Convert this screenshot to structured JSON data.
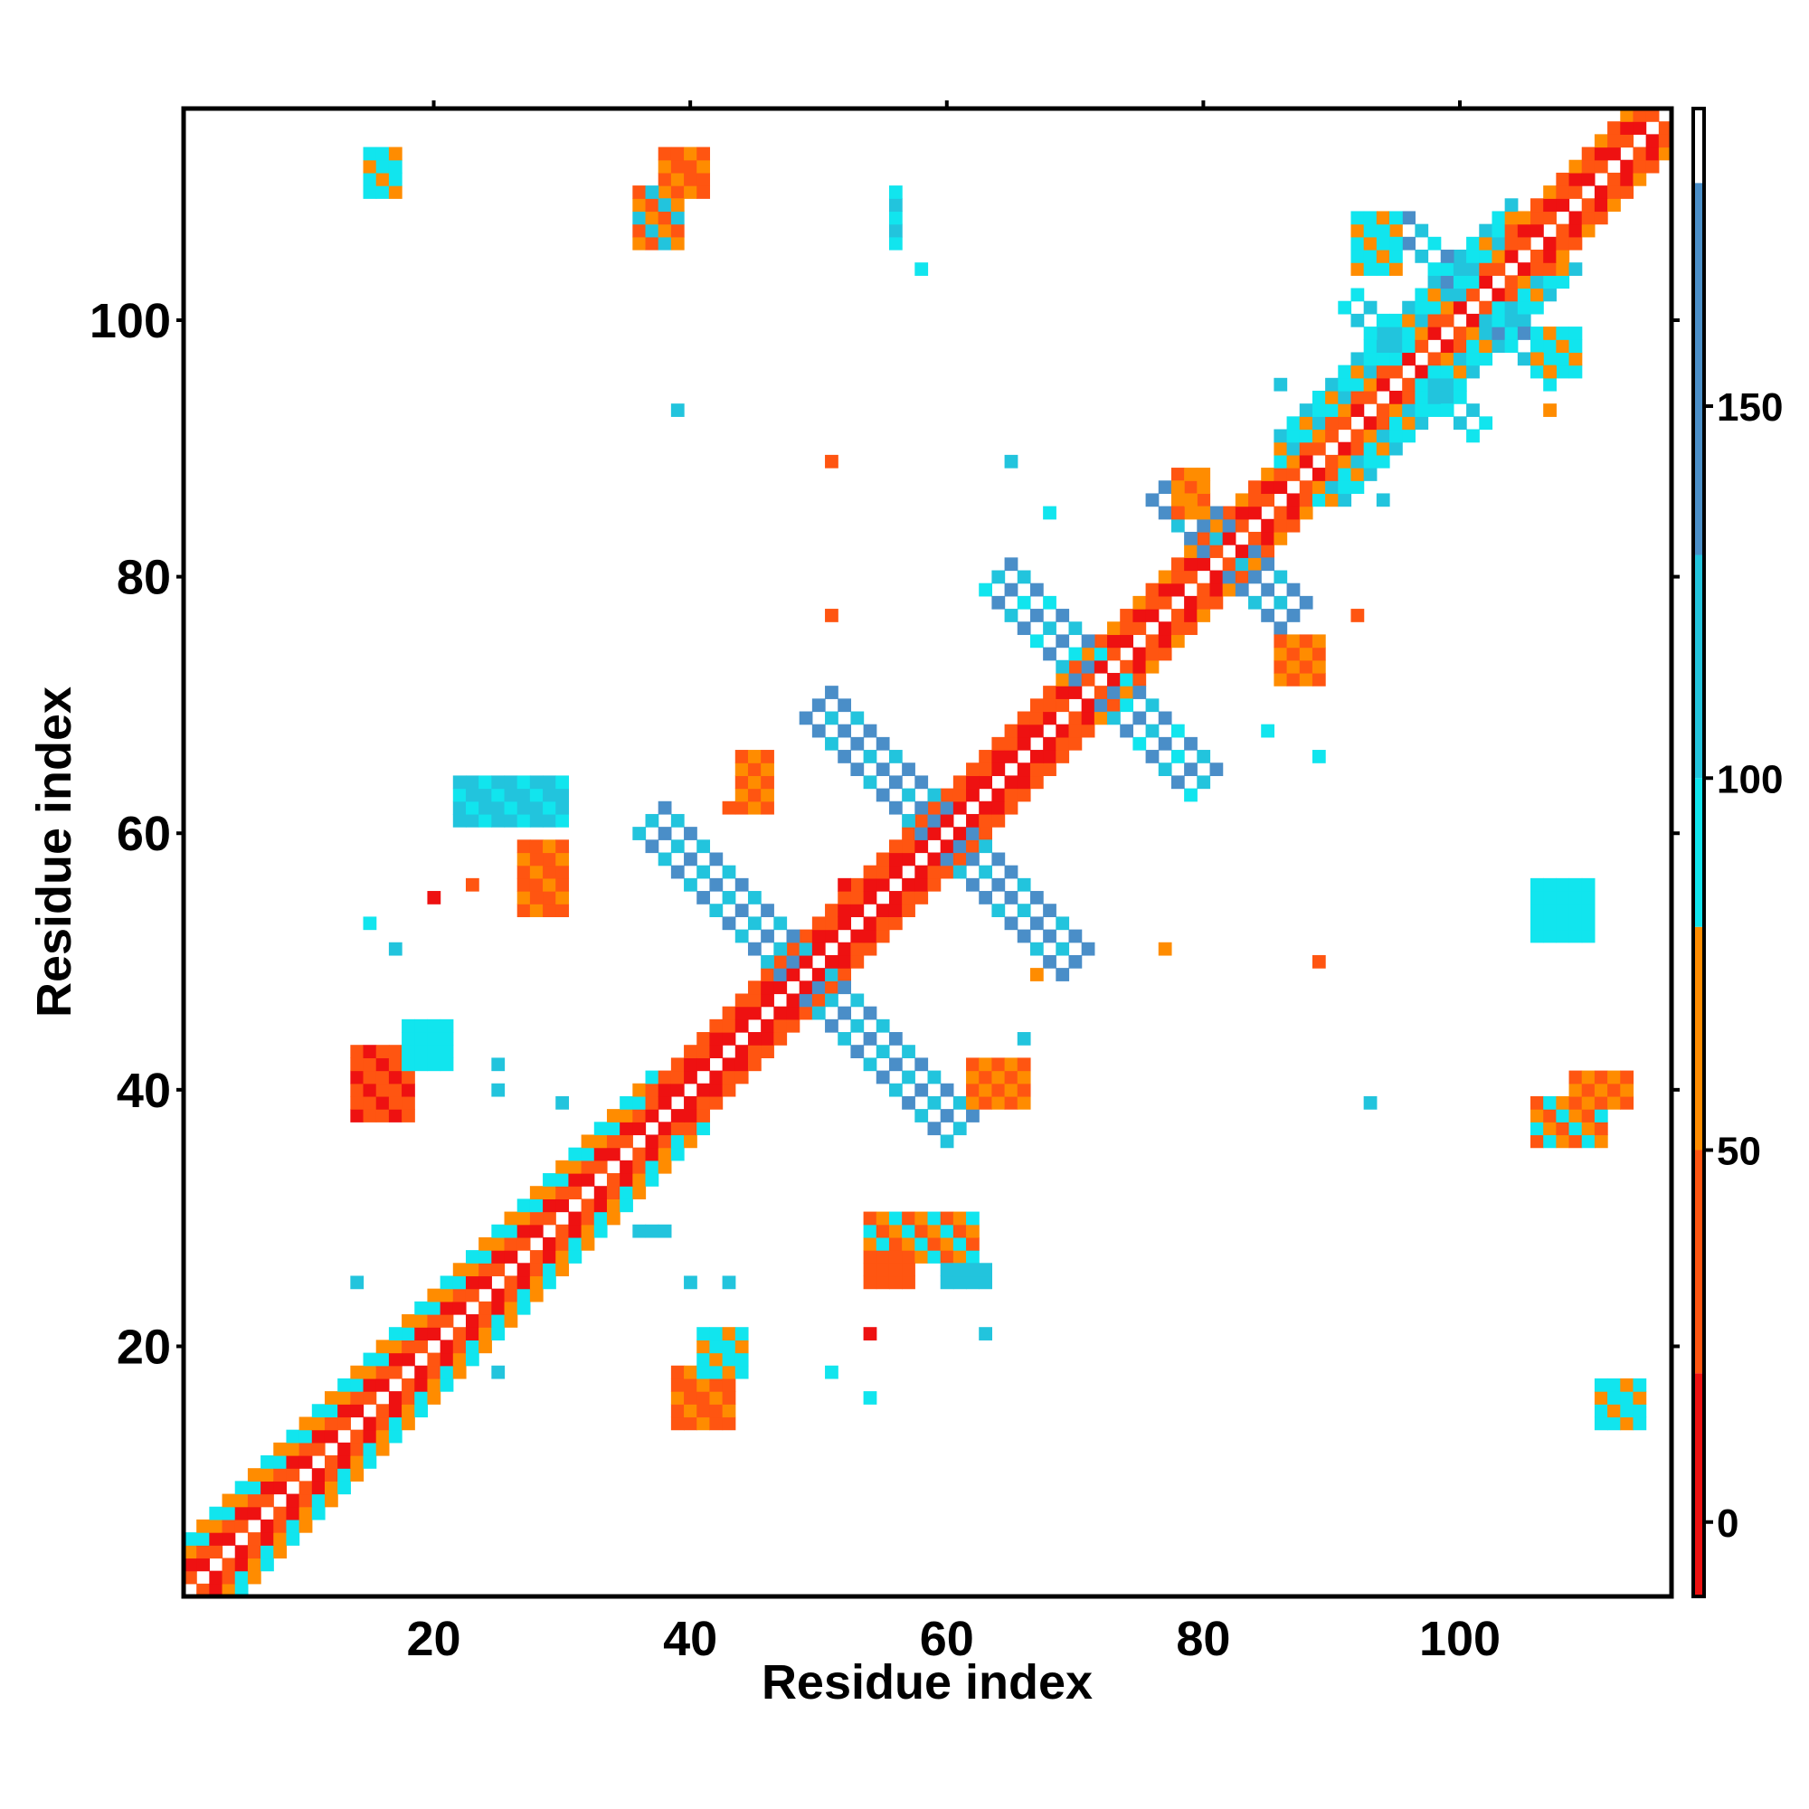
{
  "chart_data": {
    "type": "heatmap",
    "title": "",
    "xlabel": "Residue index",
    "ylabel": "Residue index",
    "xlim": [
      0.5,
      116.5
    ],
    "ylim": [
      0.5,
      116.5
    ],
    "xticks": [
      20,
      40,
      60,
      80,
      100
    ],
    "yticks": [
      20,
      40,
      60,
      80,
      100
    ],
    "colorbar": {
      "range": [
        -10,
        190
      ],
      "ticks": [
        0,
        50,
        100,
        150
      ],
      "bands": [
        {
          "from": -10,
          "to": 20,
          "color": "#ee1111"
        },
        {
          "from": 20,
          "to": 50,
          "color": "#ff5511"
        },
        {
          "from": 50,
          "to": 80,
          "color": "#ff8c00"
        },
        {
          "from": 80,
          "to": 100,
          "color": "#11e5ee"
        },
        {
          "from": 100,
          "to": 130,
          "color": "#22c4dd"
        },
        {
          "from": 130,
          "to": 180,
          "color": "#4a8ec8"
        },
        {
          "from": 180,
          "to": 190,
          "color": "#ffffff"
        }
      ]
    },
    "colors": {
      "red": "#ee1111",
      "red_orange": "#ff5511",
      "orange": "#ff8c00",
      "cyan": "#11e5ee",
      "sky": "#22c4dd",
      "steel": "#4a8ec8"
    },
    "cell_values": {
      "r": 5,
      "o": 35,
      "a": 65,
      "c": 90,
      "s": 115,
      "b": 160
    },
    "diagonal_bands": [
      {
        "i0": 1,
        "i1": 37,
        "pattern": [
          {
            "d": 1,
            "v": "ro"
          },
          {
            "d": 2,
            "v": "or"
          },
          {
            "d": 3,
            "v": "ca"
          },
          {
            "d": 4,
            "v": "ac"
          }
        ]
      },
      {
        "i0": 37,
        "i1": 68,
        "pattern": [
          {
            "d": 1,
            "v": "r"
          },
          {
            "d": 2,
            "v": "ro"
          },
          {
            "d": 3,
            "v": "o"
          }
        ]
      },
      {
        "i0": 68,
        "i1": 86,
        "pattern": [
          {
            "d": 1,
            "v": "ro"
          },
          {
            "d": 2,
            "v": "or"
          },
          {
            "d": 3,
            "v": "oa"
          }
        ]
      },
      {
        "i0": 86,
        "i1": 104,
        "pattern": [
          {
            "d": 1,
            "v": "ro"
          },
          {
            "d": 2,
            "v": "oa"
          },
          {
            "d": 3,
            "v": "cs"
          },
          {
            "d": 4,
            "v": "ac"
          },
          {
            "d": 5,
            "v": "sc"
          }
        ]
      },
      {
        "i0": 104,
        "i1": 116,
        "pattern": [
          {
            "d": 1,
            "v": "ro"
          },
          {
            "d": 2,
            "v": "or"
          },
          {
            "d": 3,
            "v": "oa"
          }
        ]
      }
    ],
    "antidiagonal_bands": [
      {
        "cx": 48.5,
        "cy": 48.5,
        "t0": -12,
        "t1": 12,
        "w": 2,
        "v": "bsbs"
      },
      {
        "cx": 59.5,
        "cy": 59.5,
        "t0": -10,
        "t1": 10,
        "w": 2,
        "v": "bsb"
      },
      {
        "cx": 71.5,
        "cy": 71.5,
        "t0": -8,
        "t1": 8,
        "w": 2,
        "v": "bsbc"
      },
      {
        "cx": 81.5,
        "cy": 81.5,
        "t0": -5,
        "t1": 5,
        "w": 2,
        "v": "bbs"
      },
      {
        "cx": 96.5,
        "cy": 96.5,
        "t0": -5,
        "t1": 5,
        "w": 1,
        "v": "cs"
      },
      {
        "cx": 101.5,
        "cy": 101.5,
        "t0": -6,
        "t1": 6,
        "w": 1,
        "v": "sbc"
      }
    ],
    "clusters": [
      {
        "x": [
          15,
          17
        ],
        "y": [
          110,
          113
        ],
        "v": "cac"
      },
      {
        "x": [
          38,
          41
        ],
        "y": [
          110,
          113
        ],
        "v": "aoo"
      },
      {
        "x": [
          36,
          39
        ],
        "y": [
          106,
          110
        ],
        "v": "sao"
      },
      {
        "x": [
          56,
          56
        ],
        "y": [
          106,
          110
        ],
        "v": "cs"
      },
      {
        "x": [
          92,
          95
        ],
        "y": [
          104,
          108
        ],
        "v": "cac"
      },
      {
        "x": [
          106,
          109
        ],
        "y": [
          96,
          99
        ],
        "v": "cca"
      },
      {
        "x": [
          78,
          80
        ],
        "y": [
          85,
          88
        ],
        "v": "aoa"
      },
      {
        "x": [
          86,
          89
        ],
        "y": [
          72,
          75
        ],
        "v": "ao"
      },
      {
        "x": [
          22,
          30
        ],
        "y": [
          61,
          64
        ],
        "v": "scs"
      },
      {
        "x": [
          27,
          30
        ],
        "y": [
          54,
          59
        ],
        "v": "oao"
      },
      {
        "x": [
          44,
          46
        ],
        "y": [
          62,
          66
        ],
        "v": "oa"
      },
      {
        "x": [
          14,
          18
        ],
        "y": [
          38,
          43
        ],
        "v": "oro"
      },
      {
        "x": [
          18,
          21
        ],
        "y": [
          42,
          45
        ],
        "v": "cc"
      },
      {
        "x": [
          62,
          66
        ],
        "y": [
          39,
          42
        ],
        "v": "oa"
      },
      {
        "x": [
          54,
          62
        ],
        "y": [
          27,
          30
        ],
        "v": "oac"
      },
      {
        "x": [
          54,
          57
        ],
        "y": [
          25,
          27
        ],
        "v": "oo"
      },
      {
        "x": [
          60,
          63
        ],
        "y": [
          25,
          26
        ],
        "v": "ss"
      },
      {
        "x": [
          39,
          43
        ],
        "y": [
          14,
          18
        ],
        "v": "oao"
      },
      {
        "x": [
          41,
          44
        ],
        "y": [
          18,
          21
        ],
        "v": "cac"
      },
      {
        "x": [
          106,
          111
        ],
        "y": [
          36,
          39
        ],
        "v": "aoc"
      },
      {
        "x": [
          109,
          113
        ],
        "y": [
          39,
          41
        ],
        "v": "oa"
      },
      {
        "x": [
          111,
          114
        ],
        "y": [
          14,
          17
        ],
        "v": "cac"
      },
      {
        "x": [
          106,
          110
        ],
        "y": [
          52,
          56
        ],
        "v": "cc"
      },
      {
        "x": [
          36,
          38
        ],
        "y": [
          29,
          29
        ],
        "v": "ss"
      }
    ],
    "singles": [
      [
        39,
        93,
        "s"
      ],
      [
        51,
        89,
        "o"
      ],
      [
        65,
        89,
        "s"
      ],
      [
        68,
        85,
        "c"
      ],
      [
        86,
        95,
        "s"
      ],
      [
        94,
        86,
        "s"
      ],
      [
        51,
        77,
        "o"
      ],
      [
        92,
        77,
        "o"
      ],
      [
        85,
        68,
        "c"
      ],
      [
        89,
        66,
        "c"
      ],
      [
        17,
        51,
        "s"
      ],
      [
        25,
        42,
        "s"
      ],
      [
        25,
        40,
        "s"
      ],
      [
        30,
        39,
        "s"
      ],
      [
        93,
        39,
        "s"
      ],
      [
        66,
        44,
        "s"
      ],
      [
        14,
        25,
        "s"
      ],
      [
        25,
        18,
        "s"
      ],
      [
        40,
        25,
        "s"
      ],
      [
        43,
        25,
        "s"
      ],
      [
        51,
        18,
        "c"
      ],
      [
        54,
        16,
        "c"
      ],
      [
        63,
        21,
        "s"
      ],
      [
        54,
        21,
        "r"
      ],
      [
        15,
        53,
        "c"
      ],
      [
        20,
        55,
        "r"
      ],
      [
        23,
        56,
        "o"
      ],
      [
        77,
        51,
        "a"
      ],
      [
        89,
        50,
        "o"
      ],
      [
        107,
        93,
        "a"
      ],
      [
        58,
        104,
        "c"
      ],
      [
        67,
        49,
        "a"
      ],
      [
        52,
        56,
        "r"
      ],
      [
        90,
        91,
        "o"
      ],
      [
        43,
        62,
        "o"
      ]
    ]
  }
}
